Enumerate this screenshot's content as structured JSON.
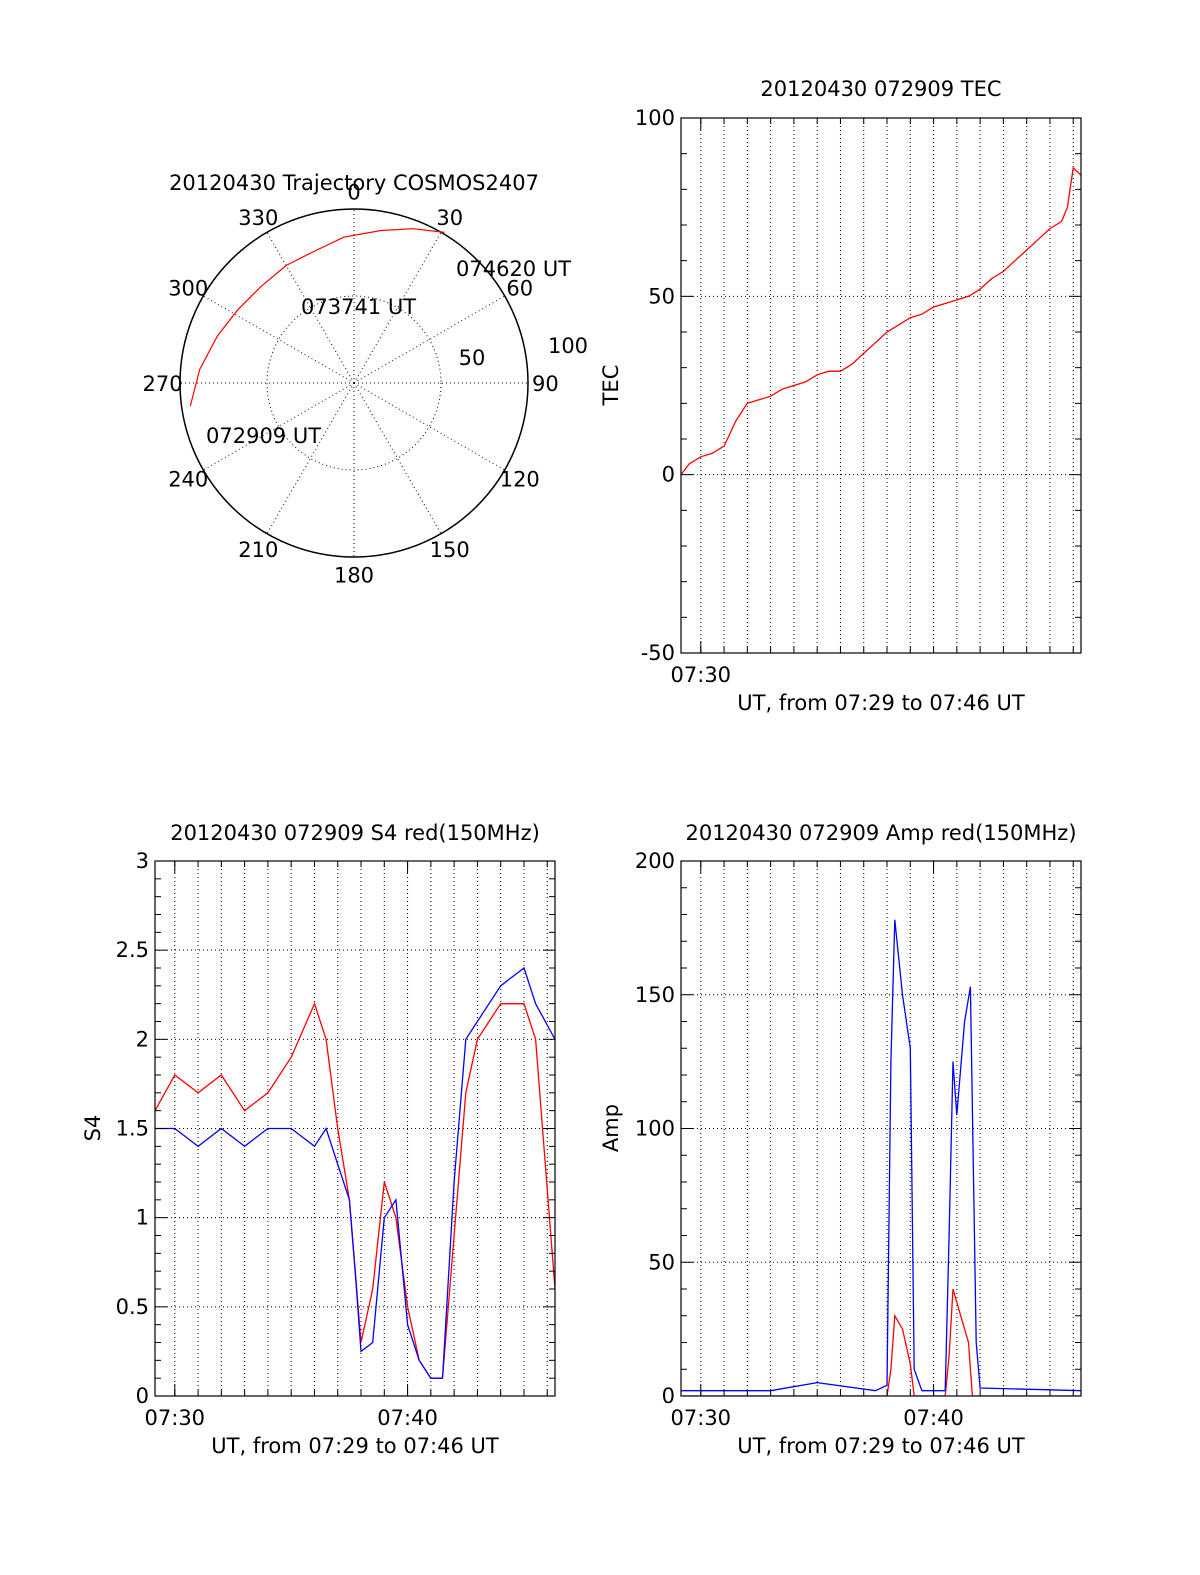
{
  "colors": {
    "red": "#ff0000",
    "blue": "#0000ff",
    "axes": "#000000"
  },
  "chart_data": [
    {
      "id": "trajectory",
      "type": "polar",
      "title": "20120430 Trajectory COSMOS2407",
      "angle_labels": [
        "0",
        "30",
        "60",
        "90",
        "120",
        "150",
        "180",
        "210",
        "240",
        "270",
        "300",
        "330"
      ],
      "radius_labels": [
        "50",
        "100"
      ],
      "rlim": [
        0,
        100
      ],
      "series": [
        {
          "color": "#ff0000",
          "points": [
            {
              "az": 262,
              "r": 95
            },
            {
              "az": 275,
              "r": 89
            },
            {
              "az": 289,
              "r": 83
            },
            {
              "az": 302,
              "r": 79
            },
            {
              "az": 316,
              "r": 77
            },
            {
              "az": 330,
              "r": 78
            },
            {
              "az": 343,
              "r": 79
            },
            {
              "az": 356,
              "r": 84
            },
            {
              "az": 10,
              "r": 89
            },
            {
              "az": 21,
              "r": 95
            },
            {
              "az": 31,
              "r": 101
            }
          ]
        }
      ],
      "annotations": [
        {
          "text": "074620 UT",
          "az": 31,
          "r": 101
        },
        {
          "text": "073741 UT",
          "az": 323,
          "r": 62
        },
        {
          "text": "072909 UT",
          "az": 262,
          "r": 95
        }
      ],
      "grid": true
    },
    {
      "id": "tec",
      "type": "line",
      "title": "20120430 072909 TEC",
      "xlabel": "UT, from 07:29 to 07:46 UT",
      "ylabel": "TEC",
      "xlim": [
        "07:29:09",
        "07:46:20"
      ],
      "ylim": [
        -50,
        100
      ],
      "xticks": [
        "07:30"
      ],
      "yticks": [
        "-50",
        "0",
        "50",
        "100"
      ],
      "grid": true,
      "series": [
        {
          "color": "#ff0000",
          "x": [
            "07:29:09",
            "07:29:30",
            "07:30:00",
            "07:30:30",
            "07:31:00",
            "07:31:30",
            "07:32:00",
            "07:32:30",
            "07:33:00",
            "07:33:30",
            "07:34:00",
            "07:34:30",
            "07:35:00",
            "07:35:30",
            "07:36:00",
            "07:36:30",
            "07:37:00",
            "07:37:30",
            "07:38:00",
            "07:38:30",
            "07:39:00",
            "07:39:30",
            "07:40:00",
            "07:40:30",
            "07:41:00",
            "07:41:30",
            "07:42:00",
            "07:42:30",
            "07:43:00",
            "07:43:30",
            "07:44:00",
            "07:44:30",
            "07:45:00",
            "07:45:30",
            "07:45:45",
            "07:46:00",
            "07:46:20"
          ],
          "y": [
            0,
            3,
            5,
            6,
            8,
            15,
            20,
            21,
            22,
            24,
            25,
            26,
            28,
            29,
            29,
            31,
            34,
            37,
            40,
            42,
            44,
            45,
            47,
            48,
            49,
            50,
            52,
            55,
            57,
            60,
            63,
            66,
            69,
            71,
            75,
            86,
            84
          ]
        }
      ]
    },
    {
      "id": "s4",
      "type": "line",
      "title": "20120430 072909 S4 red(150MHz)",
      "xlabel": "UT, from 07:29 to 07:46 UT",
      "ylabel": "S4",
      "xlim": [
        "07:29:09",
        "07:46:20"
      ],
      "ylim": [
        0,
        3
      ],
      "xticks": [
        "07:30",
        "07:40"
      ],
      "yticks": [
        "0",
        "0.5",
        "1",
        "1.5",
        "2",
        "2.5",
        "3"
      ],
      "grid": true,
      "series": [
        {
          "color": "#ff0000",
          "x": [
            "07:29:09",
            "07:30:00",
            "07:31:00",
            "07:32:00",
            "07:33:00",
            "07:34:00",
            "07:35:00",
            "07:36:00",
            "07:36:30",
            "07:37:00",
            "07:37:30",
            "07:37:45",
            "07:38:00",
            "07:38:30",
            "07:39:00",
            "07:39:30",
            "07:40:00",
            "07:40:30",
            "07:41:00",
            "07:41:30",
            "07:42:00",
            "07:42:30",
            "07:43:00",
            "07:44:00",
            "07:45:00",
            "07:45:30",
            "07:46:20"
          ],
          "y": [
            1.6,
            1.8,
            1.7,
            1.8,
            1.6,
            1.7,
            1.9,
            2.2,
            2.0,
            1.5,
            1.1,
            0.7,
            0.3,
            0.6,
            1.2,
            1.0,
            0.5,
            0.2,
            0.1,
            0.1,
            0.9,
            1.7,
            2.0,
            2.2,
            2.2,
            2.0,
            0.6
          ]
        },
        {
          "color": "#0000ff",
          "x": [
            "07:29:09",
            "07:30:00",
            "07:31:00",
            "07:32:00",
            "07:33:00",
            "07:34:00",
            "07:35:00",
            "07:36:00",
            "07:36:30",
            "07:37:00",
            "07:37:30",
            "07:37:45",
            "07:38:00",
            "07:38:30",
            "07:39:00",
            "07:39:30",
            "07:40:00",
            "07:40:30",
            "07:41:00",
            "07:41:30",
            "07:42:00",
            "07:42:30",
            "07:43:00",
            "07:44:00",
            "07:45:00",
            "07:45:30",
            "07:46:20"
          ],
          "y": [
            1.5,
            1.5,
            1.4,
            1.5,
            1.4,
            1.5,
            1.5,
            1.4,
            1.5,
            1.3,
            1.1,
            0.7,
            0.25,
            0.3,
            1.0,
            1.1,
            0.4,
            0.2,
            0.1,
            0.1,
            1.2,
            2.0,
            2.1,
            2.3,
            2.4,
            2.2,
            2.0
          ]
        }
      ]
    },
    {
      "id": "amp",
      "type": "line",
      "title": "20120430 072909 Amp red(150MHz)",
      "xlabel": "UT, from 07:29 to 07:46 UT",
      "ylabel": "Amp",
      "xlim": [
        "07:29:09",
        "07:46:20"
      ],
      "ylim": [
        0,
        200
      ],
      "xticks": [
        "07:30",
        "07:40"
      ],
      "yticks": [
        "0",
        "50",
        "100",
        "150",
        "200"
      ],
      "grid": true,
      "series": [
        {
          "color": "#ff0000",
          "x": [
            "07:29:09",
            "07:38:00",
            "07:38:10",
            "07:38:20",
            "07:38:40",
            "07:39:00",
            "07:39:10",
            "07:40:30",
            "07:40:40",
            "07:40:50",
            "07:41:10",
            "07:41:30",
            "07:41:40",
            "07:46:20"
          ],
          "y": [
            0,
            0,
            10,
            30,
            25,
            12,
            0,
            0,
            15,
            40,
            30,
            20,
            0,
            0
          ]
        },
        {
          "color": "#0000ff",
          "x": [
            "07:29:09",
            "07:33:00",
            "07:35:00",
            "07:37:30",
            "07:38:00",
            "07:38:10",
            "07:38:20",
            "07:38:40",
            "07:39:00",
            "07:39:10",
            "07:39:30",
            "07:40:00",
            "07:40:30",
            "07:40:40",
            "07:40:50",
            "07:41:00",
            "07:41:20",
            "07:41:35",
            "07:41:50",
            "07:42:00",
            "07:46:20"
          ],
          "y": [
            2,
            2,
            5,
            2,
            4,
            125,
            178,
            150,
            130,
            10,
            2,
            2,
            2,
            60,
            125,
            105,
            140,
            153,
            20,
            3,
            2
          ]
        }
      ]
    }
  ]
}
